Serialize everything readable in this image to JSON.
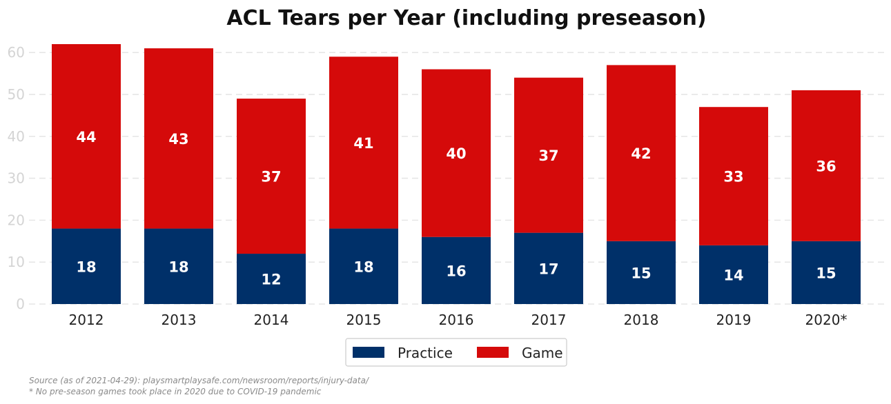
{
  "chart_data": {
    "type": "bar",
    "stacked": true,
    "title": "ACL Tears per Year (including preseason)",
    "xlabel": "",
    "ylabel": "",
    "categories": [
      "2012",
      "2013",
      "2014",
      "2015",
      "2016",
      "2017",
      "2018",
      "2019",
      "2020*"
    ],
    "series": [
      {
        "name": "Practice",
        "color": "#003069",
        "values": [
          18,
          18,
          12,
          18,
          16,
          17,
          15,
          14,
          15
        ]
      },
      {
        "name": "Game",
        "color": "#d50a0a",
        "values": [
          44,
          43,
          37,
          41,
          40,
          37,
          42,
          33,
          36
        ]
      }
    ],
    "ylim": [
      0,
      62
    ],
    "yticks": [
      0,
      10,
      20,
      30,
      40,
      50,
      60
    ],
    "grid": true,
    "legend_position": "bottom-center",
    "data_labels": true
  },
  "footnotes": {
    "source": "Source (as of 2021-04-29): playsmartplaysafe.com/newsroom/reports/injury-data/",
    "note": "* No pre-season games took place in 2020 due to COVID-19 pandemic"
  }
}
